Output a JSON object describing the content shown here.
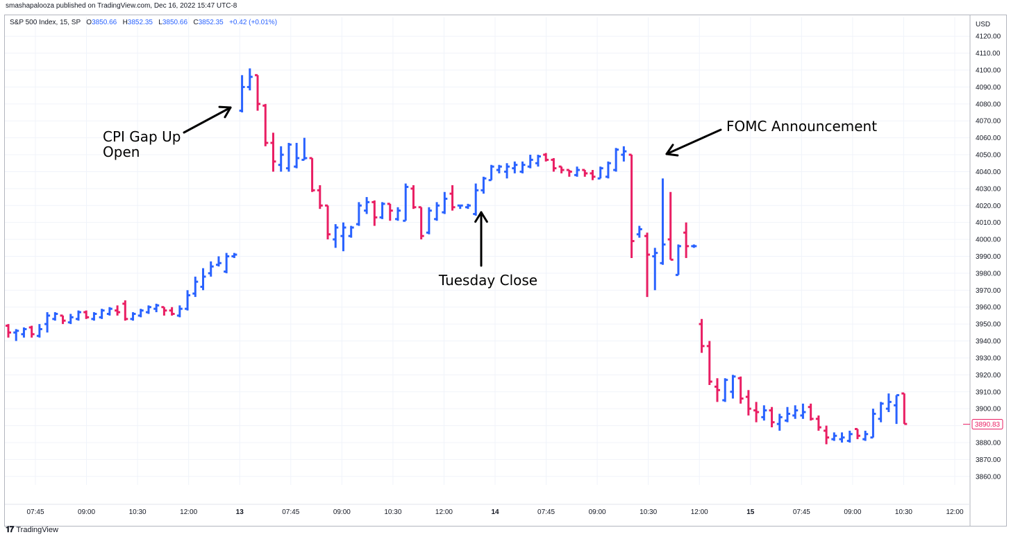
{
  "header": {
    "published": "smashapalooza published on TradingView.com, Dec 16, 2022 15:47 UTC-8",
    "symbol": "S&P 500 Index, 15, SP",
    "open_label": "O",
    "open": "3850.66",
    "high_label": "H",
    "high": "3852.35",
    "low_label": "L",
    "low": "3850.66",
    "close_label": "C",
    "close": "3852.35",
    "change": "+0.42 (+0.01%)"
  },
  "footer": {
    "brand": "TradingView",
    "logo_icon": "tradingview-logo-icon"
  },
  "colors": {
    "up": "#2962ff",
    "down": "#e91e63",
    "grid": "#f0f3fa",
    "text": "#131722",
    "price_tag": "#e91e63"
  },
  "chart_data": {
    "type": "bar",
    "subtype": "ohlc",
    "currency": "USD",
    "current_price": "3890.83",
    "ylim": [
      3855,
      4125
    ],
    "y_ticks": [
      "4120.00",
      "4110.00",
      "4100.00",
      "4090.00",
      "4080.00",
      "4070.00",
      "4060.00",
      "4050.00",
      "4040.00",
      "4030.00",
      "4020.00",
      "4010.00",
      "4000.00",
      "3990.00",
      "3980.00",
      "3970.00",
      "3960.00",
      "3950.00",
      "3940.00",
      "3930.00",
      "3920.00",
      "3910.00",
      "3900.00",
      "3890.00",
      "3880.00",
      "3870.00",
      "3860.00"
    ],
    "x_ticks": [
      "07:45",
      "09:00",
      "10:30",
      "12:00",
      "13",
      "07:45",
      "09:00",
      "10:30",
      "12:00",
      "14",
      "07:45",
      "09:00",
      "10:30",
      "12:00",
      "15",
      "07:45",
      "09:00",
      "10:30",
      "12:00"
    ],
    "grid": true,
    "series": [
      {
        "o": 3949,
        "h": 3950,
        "l": 3942,
        "c": 3945
      },
      {
        "o": 3945,
        "h": 3947,
        "l": 3940,
        "c": 3946
      },
      {
        "o": 3944,
        "h": 3948,
        "l": 3942,
        "c": 3947
      },
      {
        "o": 3948,
        "h": 3949,
        "l": 3942,
        "c": 3944
      },
      {
        "o": 3943,
        "h": 3950,
        "l": 3942,
        "c": 3947
      },
      {
        "o": 3950,
        "h": 3957,
        "l": 3945,
        "c": 3955
      },
      {
        "o": 3953,
        "h": 3957,
        "l": 3952,
        "c": 3956
      },
      {
        "o": 3955,
        "h": 3955,
        "l": 3950,
        "c": 3952
      },
      {
        "o": 3951,
        "h": 3956,
        "l": 3950,
        "c": 3954
      },
      {
        "o": 3953,
        "h": 3958,
        "l": 3952,
        "c": 3957
      },
      {
        "o": 3957,
        "h": 3958,
        "l": 3953,
        "c": 3954
      },
      {
        "o": 3953,
        "h": 3957,
        "l": 3952,
        "c": 3956
      },
      {
        "o": 3954,
        "h": 3959,
        "l": 3953,
        "c": 3958
      },
      {
        "o": 3956,
        "h": 3960,
        "l": 3955,
        "c": 3959
      },
      {
        "o": 3958,
        "h": 3961,
        "l": 3955,
        "c": 3957
      },
      {
        "o": 3962,
        "h": 3964,
        "l": 3952,
        "c": 3953
      },
      {
        "o": 3953,
        "h": 3957,
        "l": 3952,
        "c": 3956
      },
      {
        "o": 3955,
        "h": 3959,
        "l": 3954,
        "c": 3958
      },
      {
        "o": 3957,
        "h": 3961,
        "l": 3956,
        "c": 3960
      },
      {
        "o": 3959,
        "h": 3962,
        "l": 3957,
        "c": 3961
      },
      {
        "o": 3960,
        "h": 3960,
        "l": 3955,
        "c": 3958
      },
      {
        "o": 3958,
        "h": 3960,
        "l": 3955,
        "c": 3956
      },
      {
        "o": 3955,
        "h": 3961,
        "l": 3954,
        "c": 3959
      },
      {
        "o": 3959,
        "h": 3970,
        "l": 3958,
        "c": 3967
      },
      {
        "o": 3968,
        "h": 3978,
        "l": 3966,
        "c": 3975
      },
      {
        "o": 3972,
        "h": 3983,
        "l": 3970,
        "c": 3978
      },
      {
        "o": 3980,
        "h": 3987,
        "l": 3978,
        "c": 3984
      },
      {
        "o": 3985,
        "h": 3990,
        "l": 3984,
        "c": 3986
      },
      {
        "o": 3981,
        "h": 3992,
        "l": 3980,
        "c": 3990
      },
      {
        "o": 3990,
        "h": 3992,
        "l": 3989,
        "c": 3991
      },
      {
        "o": 4076,
        "h": 4097,
        "l": 4075,
        "c": 4090
      },
      {
        "o": 4090,
        "h": 4101,
        "l": 4088,
        "c": 4096
      },
      {
        "o": 4097,
        "h": 4097,
        "l": 4076,
        "c": 4080
      },
      {
        "o": 4079,
        "h": 4080,
        "l": 4055,
        "c": 4057
      },
      {
        "o": 4057,
        "h": 4063,
        "l": 4040,
        "c": 4046
      },
      {
        "o": 4044,
        "h": 4055,
        "l": 4040,
        "c": 4050
      },
      {
        "o": 4042,
        "h": 4057,
        "l": 4040,
        "c": 4056
      },
      {
        "o": 4043,
        "h": 4057,
        "l": 4042,
        "c": 4048
      },
      {
        "o": 4047,
        "h": 4060,
        "l": 4047,
        "c": 4048
      },
      {
        "o": 4048,
        "h": 4048,
        "l": 4028,
        "c": 4029
      },
      {
        "o": 4029,
        "h": 4032,
        "l": 4018,
        "c": 4020
      },
      {
        "o": 4020,
        "h": 4020,
        "l": 4000,
        "c": 4003
      },
      {
        "o": 4000,
        "h": 4009,
        "l": 3995,
        "c": 4007
      },
      {
        "o": 4002,
        "h": 4010,
        "l": 3993,
        "c": 4007
      },
      {
        "o": 4002,
        "h": 4008,
        "l": 4001,
        "c": 4007
      },
      {
        "o": 4009,
        "h": 4022,
        "l": 4008,
        "c": 4020
      },
      {
        "o": 4017,
        "h": 4025,
        "l": 4015,
        "c": 4022
      },
      {
        "o": 4022,
        "h": 4023,
        "l": 4008,
        "c": 4013
      },
      {
        "o": 4013,
        "h": 4022,
        "l": 4012,
        "c": 4021
      },
      {
        "o": 4021,
        "h": 4021,
        "l": 4011,
        "c": 4017
      },
      {
        "o": 4012,
        "h": 4019,
        "l": 4011,
        "c": 4017
      },
      {
        "o": 4011,
        "h": 4033,
        "l": 4011,
        "c": 4031
      },
      {
        "o": 4030,
        "h": 4032,
        "l": 4018,
        "c": 4019
      },
      {
        "o": 4019,
        "h": 4019,
        "l": 4000,
        "c": 4002
      },
      {
        "o": 4004,
        "h": 4019,
        "l": 4003,
        "c": 4017
      },
      {
        "o": 4012,
        "h": 4022,
        "l": 4011,
        "c": 4020
      },
      {
        "o": 4016,
        "h": 4028,
        "l": 4015,
        "c": 4024
      },
      {
        "o": 4027,
        "h": 4032,
        "l": 4017,
        "c": 4019
      },
      {
        "o": 4020,
        "h": 4020,
        "l": 4018,
        "c": 4020
      },
      {
        "o": 4019,
        "h": 4021,
        "l": 4018,
        "c": 4020
      },
      {
        "o": 4015,
        "h": 4033,
        "l": 4014,
        "c": 4029
      },
      {
        "o": 4029,
        "h": 4037,
        "l": 4027,
        "c": 4036
      },
      {
        "o": 4035,
        "h": 4044,
        "l": 4035,
        "c": 4043
      },
      {
        "o": 4041,
        "h": 4044,
        "l": 4039,
        "c": 4043
      },
      {
        "o": 4040,
        "h": 4045,
        "l": 4036,
        "c": 4043
      },
      {
        "o": 4042,
        "h": 4046,
        "l": 4039,
        "c": 4044
      },
      {
        "o": 4040,
        "h": 4046,
        "l": 4039,
        "c": 4044
      },
      {
        "o": 4043,
        "h": 4050,
        "l": 4042,
        "c": 4047
      },
      {
        "o": 4045,
        "h": 4050,
        "l": 4043,
        "c": 4049
      },
      {
        "o": 4050,
        "h": 4051,
        "l": 4046,
        "c": 4047
      },
      {
        "o": 4047,
        "h": 4048,
        "l": 4040,
        "c": 4042
      },
      {
        "o": 4043,
        "h": 4043,
        "l": 4039,
        "c": 4041
      },
      {
        "o": 4041,
        "h": 4041,
        "l": 4037,
        "c": 4040
      },
      {
        "o": 4038,
        "h": 4043,
        "l": 4037,
        "c": 4041
      },
      {
        "o": 4041,
        "h": 4041,
        "l": 4037,
        "c": 4039
      },
      {
        "o": 4039,
        "h": 4041,
        "l": 4035,
        "c": 4037
      },
      {
        "o": 4036,
        "h": 4043,
        "l": 4036,
        "c": 4042
      },
      {
        "o": 4037,
        "h": 4046,
        "l": 4036,
        "c": 4045
      },
      {
        "o": 4041,
        "h": 4054,
        "l": 4040,
        "c": 4053
      },
      {
        "o": 4050,
        "h": 4055,
        "l": 4046,
        "c": 4052
      },
      {
        "o": 4050,
        "h": 4050,
        "l": 3989,
        "c": 3999
      },
      {
        "o": 4003,
        "h": 4008,
        "l": 4001,
        "c": 4006
      },
      {
        "o": 4002,
        "h": 4004,
        "l": 3966,
        "c": 3991
      },
      {
        "o": 3990,
        "h": 3995,
        "l": 3970,
        "c": 3992
      },
      {
        "o": 3986,
        "h": 4036,
        "l": 3985,
        "c": 3997
      },
      {
        "o": 4000,
        "h": 4028,
        "l": 3988,
        "c": 3988
      },
      {
        "o": 3979,
        "h": 3997,
        "l": 3979,
        "c": 3996
      },
      {
        "o": 4004,
        "h": 4010,
        "l": 3989,
        "c": 3996
      },
      {
        "o": 3996,
        "h": 3997,
        "l": 3995,
        "c": 3996
      },
      {
        "o": 3950,
        "h": 3953,
        "l": 3933,
        "c": 3937
      },
      {
        "o": 3937,
        "h": 3940,
        "l": 3914,
        "c": 3916
      },
      {
        "o": 3913,
        "h": 3918,
        "l": 3904,
        "c": 3911
      },
      {
        "o": 3905,
        "h": 3918,
        "l": 3904,
        "c": 3917
      },
      {
        "o": 3910,
        "h": 3920,
        "l": 3906,
        "c": 3919
      },
      {
        "o": 3918,
        "h": 3919,
        "l": 3903,
        "c": 3906
      },
      {
        "o": 3907,
        "h": 3911,
        "l": 3896,
        "c": 3900
      },
      {
        "o": 3899,
        "h": 3904,
        "l": 3892,
        "c": 3898
      },
      {
        "o": 3895,
        "h": 3902,
        "l": 3893,
        "c": 3899
      },
      {
        "o": 3899,
        "h": 3901,
        "l": 3889,
        "c": 3892
      },
      {
        "o": 3891,
        "h": 3897,
        "l": 3887,
        "c": 3895
      },
      {
        "o": 3893,
        "h": 3901,
        "l": 3892,
        "c": 3897
      },
      {
        "o": 3896,
        "h": 3902,
        "l": 3894,
        "c": 3899
      },
      {
        "o": 3896,
        "h": 3903,
        "l": 3894,
        "c": 3898
      },
      {
        "o": 3901,
        "h": 3903,
        "l": 3893,
        "c": 3894
      },
      {
        "o": 3894,
        "h": 3896,
        "l": 3887,
        "c": 3889
      },
      {
        "o": 3887,
        "h": 3890,
        "l": 3879,
        "c": 3883
      },
      {
        "o": 3882,
        "h": 3886,
        "l": 3881,
        "c": 3884
      },
      {
        "o": 3882,
        "h": 3886,
        "l": 3880,
        "c": 3883
      },
      {
        "o": 3881,
        "h": 3887,
        "l": 3880,
        "c": 3885
      },
      {
        "o": 3888,
        "h": 3888,
        "l": 3882,
        "c": 3884
      },
      {
        "o": 3882,
        "h": 3887,
        "l": 3881,
        "c": 3885
      },
      {
        "o": 3883,
        "h": 3900,
        "l": 3883,
        "c": 3897
      },
      {
        "o": 3894,
        "h": 3904,
        "l": 3892,
        "c": 3903
      },
      {
        "o": 3900,
        "h": 3909,
        "l": 3898,
        "c": 3904
      },
      {
        "o": 3902,
        "h": 3908,
        "l": 3891,
        "c": 3908
      },
      {
        "o": 3909,
        "h": 3909,
        "l": 3891,
        "c": 3891
      }
    ],
    "annotations": [
      {
        "text_lines": [
          "CPI Gap Up",
          "Open"
        ],
        "target_bar": 30
      },
      {
        "text_lines": [
          "Tuesday Close"
        ],
        "target_bar": 58
      },
      {
        "text_lines": [
          "FOMC Announcement"
        ],
        "target_bar": 80
      }
    ]
  }
}
